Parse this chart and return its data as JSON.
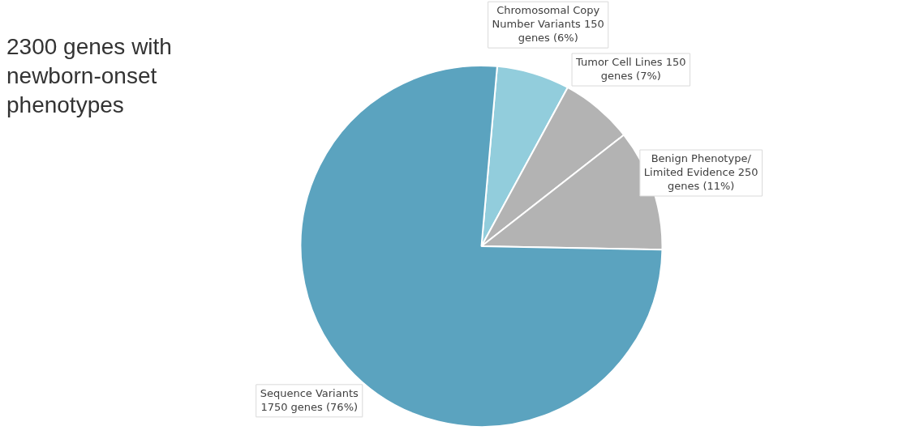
{
  "chart_data": {
    "type": "pie",
    "title": "2300 genes with newborn-onset phenotypes",
    "categories": [
      "Chromosomal Copy Number Variants",
      "Tumor Cell Lines",
      "Benign Phenotype/ Limited Evidence",
      "Sequence Variants"
    ],
    "values": [
      150,
      150,
      250,
      1750
    ],
    "colors": [
      "#92cddc",
      "#b3b3b3",
      "#b3b3b3",
      "#5ba3bf"
    ],
    "value_labels": [
      "150 genes (6%)",
      "150 genes (7%)",
      "250 genes (11%)",
      "1750 genes (76%)"
    ],
    "legend": false
  }
}
